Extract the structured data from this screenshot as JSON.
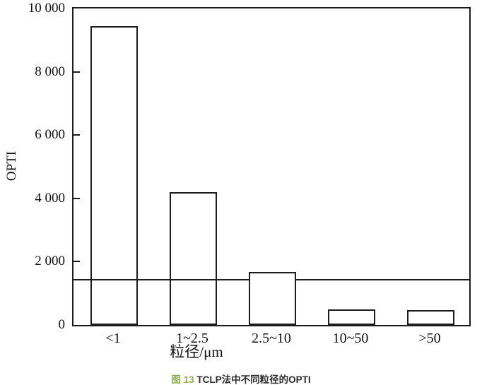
{
  "chart_data": {
    "type": "bar",
    "title": "",
    "categories": [
      "<1",
      "1~2.5",
      "2.5~10",
      "10~50",
      ">50"
    ],
    "values": [
      9450,
      4200,
      1680,
      500,
      470
    ],
    "xlabel": "粒径/μm",
    "ylabel": "OPTI",
    "ylim": [
      0,
      10000
    ],
    "yticks": [
      0,
      2000,
      4000,
      6000,
      8000,
      10000
    ],
    "ytick_labels": [
      "0",
      "2 000",
      "4 000",
      "6 000",
      "8 000",
      "10 000"
    ],
    "reference_line_y": 1430,
    "bar_fill": "white-outline",
    "grid": false,
    "legend": "none",
    "line_color": "#1c1c1c"
  },
  "caption": {
    "figure_label": "图 13",
    "text": "TCLP法中不同粒径的OPTI",
    "label_color": "#8cae4c",
    "text_color": "#2e2e2e"
  }
}
